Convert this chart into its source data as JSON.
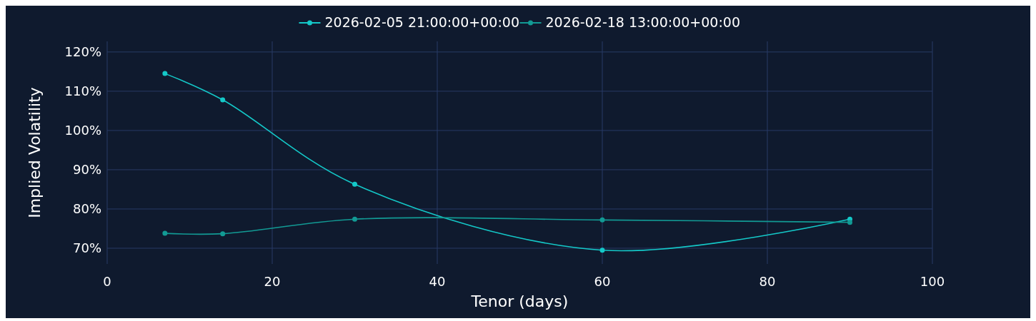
{
  "chart_data": {
    "type": "line",
    "xlabel": "Tenor (days)",
    "ylabel": "Implied Volatility",
    "x": [
      7,
      14,
      30,
      60,
      90
    ],
    "series": [
      {
        "name": "2026-02-05 21:00:00+00:00",
        "color": "#14c8c8",
        "values": [
          114.5,
          107.8,
          86.3,
          69.5,
          77.4
        ]
      },
      {
        "name": "2026-02-18 13:00:00+00:00",
        "color": "#129a94",
        "values": [
          73.8,
          73.7,
          77.4,
          77.2,
          76.6
        ]
      }
    ],
    "xlim": [
      0,
      100
    ],
    "xticks": [
      0,
      20,
      40,
      60,
      80,
      100
    ],
    "ylim": [
      66,
      122.7
    ],
    "yticks": [
      {
        "value": 70,
        "label": "70%"
      },
      {
        "value": 80,
        "label": "80%"
      },
      {
        "value": 90,
        "label": "90%"
      },
      {
        "value": 100,
        "label": "100%"
      },
      {
        "value": 110,
        "label": "110%"
      },
      {
        "value": 120,
        "label": "120%"
      }
    ],
    "grid": true,
    "legend": "top",
    "marker": "circle",
    "line_style": "solid"
  }
}
